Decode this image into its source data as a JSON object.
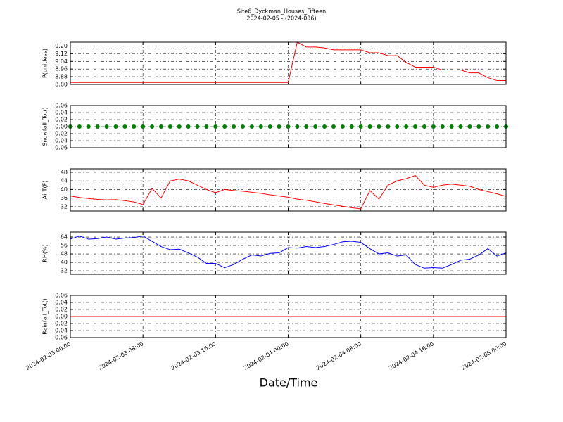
{
  "chart_data": {
    "type": "line",
    "title": "Site6_Dyckman_Houses_Fifteen",
    "subtitle": "2024-02-05 - (2024-036)",
    "xlabel": "Date/Time",
    "grid": true,
    "xlim": [
      "2024-02-03 00:00",
      "2024-02-05 00:00"
    ],
    "xticks": [
      "2024-02-03 00:00",
      "2024-02-03 08:00",
      "2024-02-03 16:00",
      "2024-02-04 00:00",
      "2024-02-04 08:00",
      "2024-02-04 16:00",
      "2024-02-05 00:00"
    ],
    "x": [
      "2024-02-03 00:00",
      "2024-02-03 01:00",
      "2024-02-03 02:00",
      "2024-02-03 03:00",
      "2024-02-03 04:00",
      "2024-02-03 05:00",
      "2024-02-03 06:00",
      "2024-02-03 07:00",
      "2024-02-03 08:00",
      "2024-02-03 09:00",
      "2024-02-03 10:00",
      "2024-02-03 11:00",
      "2024-02-03 12:00",
      "2024-02-03 13:00",
      "2024-02-03 14:00",
      "2024-02-03 15:00",
      "2024-02-03 16:00",
      "2024-02-03 17:00",
      "2024-02-03 18:00",
      "2024-02-03 19:00",
      "2024-02-03 20:00",
      "2024-02-03 21:00",
      "2024-02-03 22:00",
      "2024-02-03 23:00",
      "2024-02-04 00:00",
      "2024-02-04 01:00",
      "2024-02-04 02:00",
      "2024-02-04 03:00",
      "2024-02-04 04:00",
      "2024-02-04 05:00",
      "2024-02-04 06:00",
      "2024-02-04 07:00",
      "2024-02-04 08:00",
      "2024-02-04 09:00",
      "2024-02-04 10:00",
      "2024-02-04 11:00",
      "2024-02-04 12:00",
      "2024-02-04 13:00",
      "2024-02-04 14:00",
      "2024-02-04 15:00",
      "2024-02-04 16:00",
      "2024-02-04 17:00",
      "2024-02-04 18:00",
      "2024-02-04 19:00",
      "2024-02-04 20:00",
      "2024-02-04 21:00",
      "2024-02-04 22:00",
      "2024-02-04 23:00",
      "2024-02-05 00:00"
    ],
    "panels": [
      {
        "ylabel": "P(unitless)",
        "ylim": [
          8.8,
          9.24
        ],
        "yticks": [
          {
            "value": 8.8,
            "label": "8.80"
          },
          {
            "value": 8.88,
            "label": "8.88"
          },
          {
            "value": 8.96,
            "label": "8.96"
          },
          {
            "value": 9.04,
            "label": "9.04"
          },
          {
            "value": 9.12,
            "label": "9.12"
          },
          {
            "value": 9.2,
            "label": "9.20"
          }
        ],
        "series": [
          {
            "color": "#ff0000",
            "marker": false,
            "values": [
              8.82,
              8.82,
              8.82,
              8.82,
              8.82,
              8.82,
              8.82,
              8.82,
              8.82,
              8.82,
              8.82,
              8.82,
              8.82,
              8.82,
              8.82,
              8.82,
              8.82,
              8.82,
              8.82,
              8.82,
              8.82,
              8.82,
              8.82,
              8.82,
              8.82,
              9.24,
              9.19,
              9.19,
              9.18,
              9.16,
              9.16,
              9.16,
              9.16,
              9.13,
              9.13,
              9.1,
              9.1,
              9.03,
              8.98,
              8.98,
              8.98,
              8.95,
              8.95,
              8.95,
              8.92,
              8.92,
              8.87,
              8.84,
              8.84
            ]
          }
        ]
      },
      {
        "ylabel": "Snowfall_Tot()",
        "ylim": [
          -0.06,
          0.06
        ],
        "yticks": [
          {
            "value": -0.06,
            "label": "-0.06"
          },
          {
            "value": -0.04,
            "label": "-0.04"
          },
          {
            "value": -0.02,
            "label": "-0.02"
          },
          {
            "value": 0,
            "label": "0.00"
          },
          {
            "value": 0.02,
            "label": "0.02"
          },
          {
            "value": 0.04,
            "label": "0.04"
          },
          {
            "value": 0.06,
            "label": "0.06"
          }
        ],
        "series": [
          {
            "color": "#008000",
            "marker": true,
            "values": [
              0,
              0,
              0,
              0,
              0,
              0,
              0,
              0,
              0,
              0,
              0,
              0,
              0,
              0,
              0,
              0,
              0,
              0,
              0,
              0,
              0,
              0,
              0,
              0,
              0,
              0,
              0,
              0,
              0,
              0,
              0,
              0,
              0,
              0,
              0,
              0,
              0,
              0,
              0,
              0,
              0,
              0,
              0,
              0,
              0,
              0,
              0,
              0,
              0
            ]
          }
        ]
      },
      {
        "ylabel": "AirT(F)",
        "ylim": [
          30,
          49.6
        ],
        "yticks": [
          32,
          36,
          40,
          44,
          48
        ],
        "series": [
          {
            "color": "#ff0000",
            "marker": false,
            "values": [
              37,
              36.3,
              35.8,
              35.4,
              35.2,
              35.3,
              34.8,
              34.2,
              33,
              40.5,
              36,
              44,
              44.8,
              44,
              42,
              40,
              38.5,
              40,
              39.5,
              39.2,
              38.7,
              38.2,
              37.5,
              37,
              36.4,
              35.5,
              35,
              34.3,
              33.5,
              32.8,
              32.2,
              31.5,
              31,
              39.5,
              35.5,
              42,
              44,
              45,
              46.5,
              42,
              41,
              42,
              42.5,
              42,
              41.5,
              40,
              39,
              38,
              36.8
            ]
          }
        ]
      },
      {
        "ylabel": "RH(%)",
        "ylim": [
          28.7,
          68.7
        ],
        "yticks": [
          32,
          40,
          48,
          56,
          64
        ],
        "series": [
          {
            "color": "#0000ff",
            "marker": false,
            "values": [
              62,
              65,
              62,
              62.5,
              64,
              62,
              63,
              63.5,
              65,
              60,
              55,
              52,
              52.5,
              49,
              45,
              39,
              39,
              35,
              38,
              43,
              47,
              46,
              48.5,
              49,
              54,
              53.5,
              55,
              54,
              55,
              57,
              59.5,
              60,
              59,
              53,
              48,
              49,
              46,
              47,
              38,
              34.5,
              35,
              34.5,
              38,
              42,
              43,
              47,
              53,
              46,
              49
            ]
          }
        ]
      },
      {
        "ylabel": "Rainfall_Tot()",
        "ylim": [
          -0.06,
          0.06
        ],
        "yticks": [
          {
            "value": -0.06,
            "label": "-0.06"
          },
          {
            "value": -0.04,
            "label": "-0.04"
          },
          {
            "value": -0.02,
            "label": "-0.02"
          },
          {
            "value": 0,
            "label": "0.00"
          },
          {
            "value": 0.02,
            "label": "0.02"
          },
          {
            "value": 0.04,
            "label": "0.04"
          },
          {
            "value": 0.06,
            "label": "0.06"
          }
        ],
        "series": [
          {
            "color": "#ff0000",
            "marker": false,
            "values": [
              0,
              0,
              0,
              0,
              0,
              0,
              0,
              0,
              0,
              0,
              0,
              0,
              0,
              0,
              0,
              0,
              0,
              0,
              0,
              0,
              0,
              0,
              0,
              0,
              0,
              0,
              0,
              0,
              0,
              0,
              0,
              0,
              0,
              0,
              0,
              0,
              0,
              0,
              0,
              0,
              0,
              0,
              0,
              0,
              0,
              0,
              0,
              0,
              0
            ]
          }
        ]
      }
    ]
  }
}
